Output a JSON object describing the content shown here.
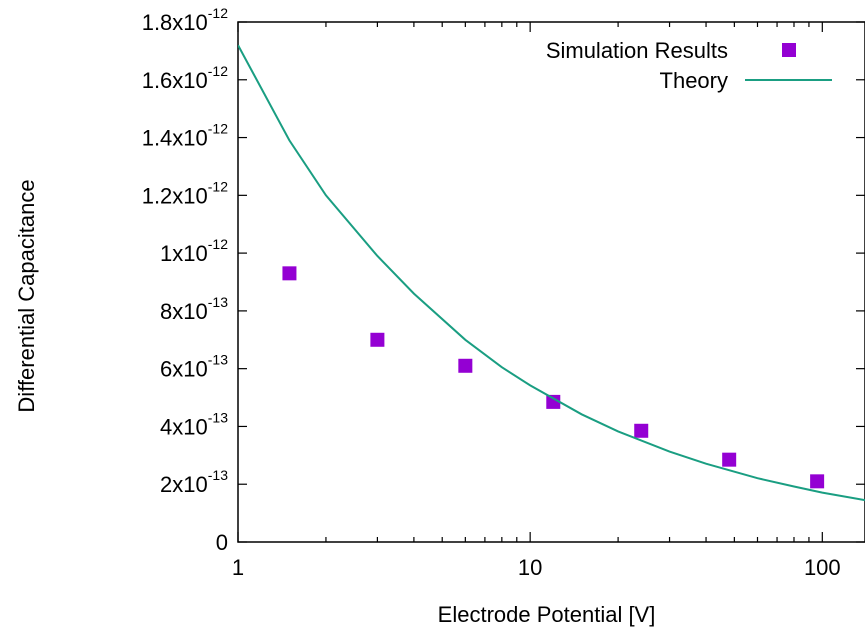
{
  "chart_data": {
    "type": "scatter",
    "title": "",
    "xlabel": "Electrode Potential [V]",
    "ylabel": "Differential Capacitance",
    "x_scale": "log",
    "xlim": [
      1,
      140
    ],
    "ylim": [
      0,
      1.8e-12
    ],
    "grid": false,
    "legend_position": "top-right",
    "x_ticks": [
      {
        "value": 1,
        "label": "1"
      },
      {
        "value": 10,
        "label": "10"
      },
      {
        "value": 100,
        "label": "100"
      }
    ],
    "y_ticks": [
      {
        "value": 0,
        "mant": "0",
        "exp": ""
      },
      {
        "value": 2e-13,
        "mant": "2x10",
        "exp": "-13"
      },
      {
        "value": 4e-13,
        "mant": "4x10",
        "exp": "-13"
      },
      {
        "value": 6e-13,
        "mant": "6x10",
        "exp": "-13"
      },
      {
        "value": 8e-13,
        "mant": "8x10",
        "exp": "-13"
      },
      {
        "value": 1e-12,
        "mant": "1x10",
        "exp": "-12"
      },
      {
        "value": 1.2e-12,
        "mant": "1.2x10",
        "exp": "-12"
      },
      {
        "value": 1.4e-12,
        "mant": "1.4x10",
        "exp": "-12"
      },
      {
        "value": 1.6e-12,
        "mant": "1.6x10",
        "exp": "-12"
      },
      {
        "value": 1.8e-12,
        "mant": "1.8x10",
        "exp": "-12"
      }
    ],
    "series": [
      {
        "name": "Simulation Results",
        "kind": "scatter",
        "marker": "square",
        "color": "#9400d3",
        "x": [
          1.5,
          3,
          6,
          12,
          24,
          48,
          96
        ],
        "y": [
          9.3e-13,
          7e-13,
          6.1e-13,
          4.85e-13,
          3.85e-13,
          2.85e-13,
          2.1e-13
        ]
      },
      {
        "name": "Theory",
        "kind": "line",
        "color": "#1a9e82",
        "x": [
          1,
          1.5,
          2,
          3,
          4,
          6,
          8,
          10,
          15,
          20,
          30,
          40,
          60,
          80,
          100,
          140
        ],
        "y": [
          1.72e-12,
          1.39e-12,
          1.2e-12,
          9.9e-13,
          8.6e-13,
          7e-13,
          6.05e-13,
          5.42e-13,
          4.42e-13,
          3.83e-13,
          3.13e-13,
          2.71e-13,
          2.21e-13,
          1.92e-13,
          1.71e-13,
          1.45e-13
        ]
      }
    ]
  }
}
